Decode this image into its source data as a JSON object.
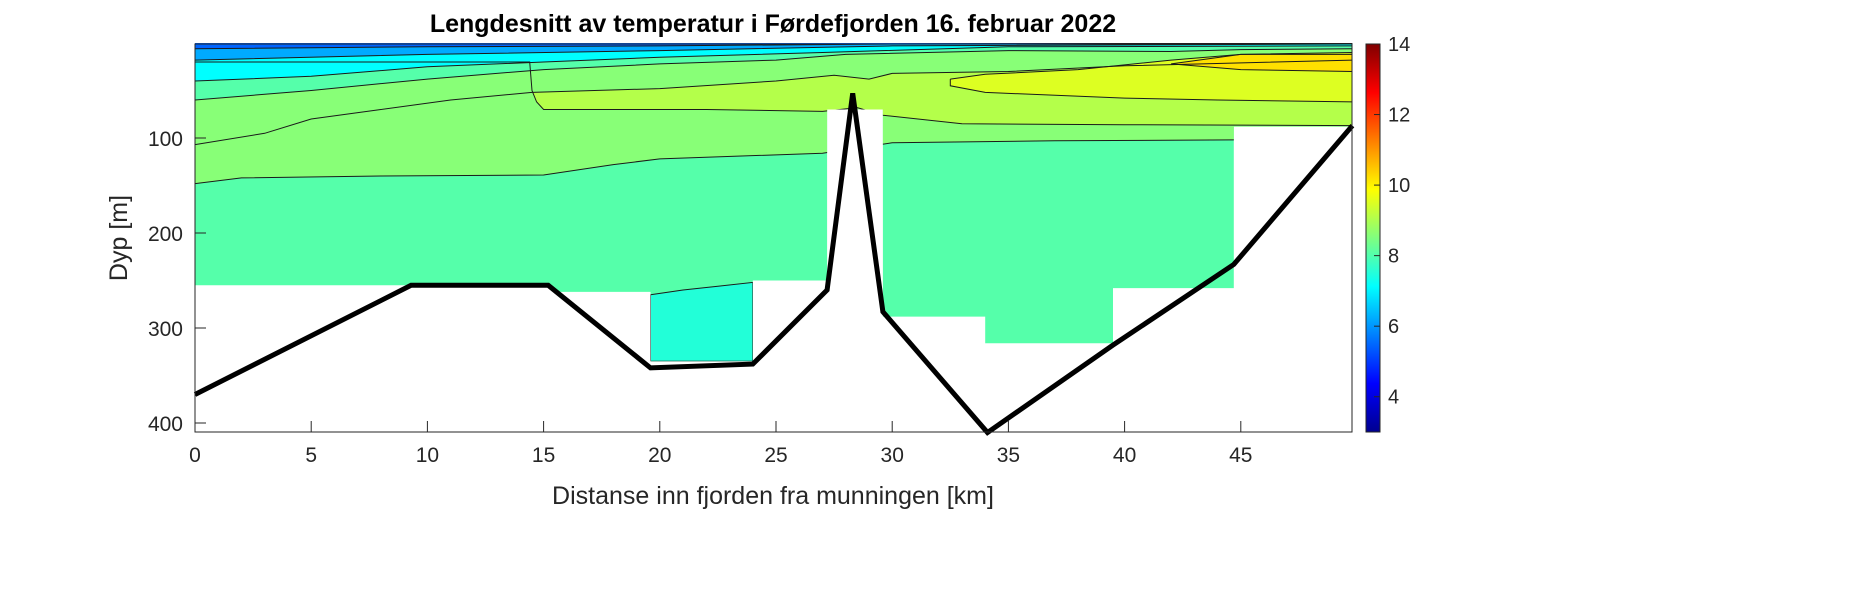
{
  "chart_data": {
    "type": "contour",
    "title": "Lengdesnitt av temperatur i Førdefjorden 16. februar 2022",
    "xlabel": "Distanse inn fjorden fra munningen [km]",
    "ylabel": "Dyp [m]",
    "xlim": [
      0,
      49.8
    ],
    "ylim": [
      0,
      410
    ],
    "y_reversed": true,
    "xticks": [
      0,
      5,
      10,
      15,
      20,
      25,
      30,
      35,
      40,
      45
    ],
    "yticks": [
      100,
      200,
      300,
      400
    ],
    "colorbar": {
      "clim": [
        3,
        14
      ],
      "ticks": [
        4,
        6,
        8,
        10,
        12,
        14
      ],
      "colormap": "jet"
    },
    "data_mask": [
      [
        0,
        0
      ],
      [
        49.8,
        0
      ],
      [
        49.8,
        88
      ],
      [
        44.7,
        88
      ],
      [
        44.7,
        258
      ],
      [
        39.5,
        258
      ],
      [
        39.5,
        316
      ],
      [
        34,
        316
      ],
      [
        34,
        288
      ],
      [
        29.6,
        288
      ],
      [
        29.6,
        70
      ],
      [
        27.2,
        70
      ],
      [
        27.2,
        250
      ],
      [
        24,
        250
      ],
      [
        24,
        335
      ],
      [
        19.6,
        335
      ],
      [
        19.6,
        262
      ],
      [
        15.4,
        262
      ],
      [
        15.2,
        255
      ],
      [
        0,
        255
      ]
    ],
    "regions": [
      {
        "temp": 7.8,
        "color": "#55ffaa",
        "above": [
          [
            0,
            255
          ],
          [
            49.8,
            255
          ]
        ],
        "full": true
      },
      {
        "temp": 7.3,
        "color": "#22ffd8",
        "polygon": [
          [
            19.6,
            265
          ],
          [
            21,
            260
          ],
          [
            22.5,
            256
          ],
          [
            24,
            252
          ],
          [
            24,
            335
          ],
          [
            19.6,
            335
          ]
        ]
      },
      {
        "temp": 8.3,
        "color": "#88ff77",
        "above": [
          [
            0,
            148
          ],
          [
            2,
            142
          ],
          [
            8,
            140
          ],
          [
            15,
            139
          ],
          [
            18,
            128
          ],
          [
            20,
            122
          ],
          [
            27,
            116
          ],
          [
            30,
            105
          ],
          [
            37,
            103
          ],
          [
            45,
            102
          ],
          [
            49.8,
            100
          ]
        ]
      },
      {
        "temp": 8.8,
        "color": "#b4ff4a",
        "above": [
          [
            0,
            20
          ],
          [
            14.4,
            20
          ],
          [
            14.5,
            50
          ],
          [
            14.7,
            62
          ],
          [
            15,
            70
          ],
          [
            22,
            70
          ],
          [
            27,
            72
          ],
          [
            28.5,
            68
          ],
          [
            29.6,
            76
          ],
          [
            33,
            85
          ],
          [
            40,
            86
          ],
          [
            49.8,
            87
          ]
        ]
      },
      {
        "temp": 8.3,
        "color": "#88ff77",
        "above": [
          [
            0,
            107
          ],
          [
            3,
            95
          ],
          [
            5,
            80
          ],
          [
            8,
            70
          ],
          [
            11,
            60
          ],
          [
            14.5,
            52
          ],
          [
            20,
            48
          ],
          [
            25,
            40
          ],
          [
            27.5,
            34
          ],
          [
            29,
            38
          ],
          [
            30,
            32
          ],
          [
            35,
            30
          ],
          [
            40,
            24
          ],
          [
            49.8,
            18
          ]
        ]
      },
      {
        "temp": 9.3,
        "color": "#ddff22",
        "polygon": [
          [
            32.5,
            38
          ],
          [
            34,
            33
          ],
          [
            38,
            28
          ],
          [
            42,
            18
          ],
          [
            45,
            12
          ],
          [
            49.8,
            10
          ],
          [
            49.8,
            62
          ],
          [
            44,
            60
          ],
          [
            40,
            58
          ],
          [
            34,
            52
          ],
          [
            32.5,
            45
          ]
        ]
      },
      {
        "temp": 9.8,
        "color": "#ffe000",
        "polygon": [
          [
            42,
            22
          ],
          [
            45,
            12
          ],
          [
            49.8,
            12
          ],
          [
            49.8,
            30
          ],
          [
            45,
            28
          ]
        ]
      },
      {
        "temp": 7.8,
        "color": "#55ffaa",
        "above": [
          [
            0,
            60
          ],
          [
            5,
            50
          ],
          [
            10,
            38
          ],
          [
            15,
            28
          ],
          [
            20,
            22
          ],
          [
            25,
            18
          ],
          [
            28,
            12
          ],
          [
            35,
            8
          ],
          [
            42,
            9
          ],
          [
            45,
            7
          ],
          [
            49.8,
            6
          ]
        ]
      },
      {
        "temp": 7.0,
        "color": "#00ffff",
        "above": [
          [
            0,
            40
          ],
          [
            5,
            35
          ],
          [
            10,
            25
          ],
          [
            15,
            20
          ],
          [
            20,
            15
          ],
          [
            27,
            10
          ],
          [
            35,
            4
          ],
          [
            49.8,
            3
          ]
        ]
      },
      {
        "temp": 6.3,
        "color": "#00aaff",
        "above": [
          [
            0,
            18
          ],
          [
            10,
            12
          ],
          [
            20,
            8
          ],
          [
            30,
            3
          ],
          [
            49.8,
            1
          ]
        ]
      },
      {
        "temp": 5.8,
        "color": "#0064ff",
        "above": [
          [
            0,
            6
          ],
          [
            10,
            4
          ],
          [
            20,
            3
          ],
          [
            30,
            1
          ],
          [
            49.8,
            0
          ]
        ]
      }
    ],
    "bottom_profile": [
      [
        0,
        370
      ],
      [
        9.3,
        255
      ],
      [
        15.2,
        255
      ],
      [
        19.6,
        342
      ],
      [
        24,
        338
      ],
      [
        27.2,
        260
      ],
      [
        28.3,
        53
      ],
      [
        29.6,
        283
      ],
      [
        34.1,
        410
      ],
      [
        39.5,
        318
      ],
      [
        44.7,
        233
      ],
      [
        49.8,
        87
      ]
    ]
  }
}
